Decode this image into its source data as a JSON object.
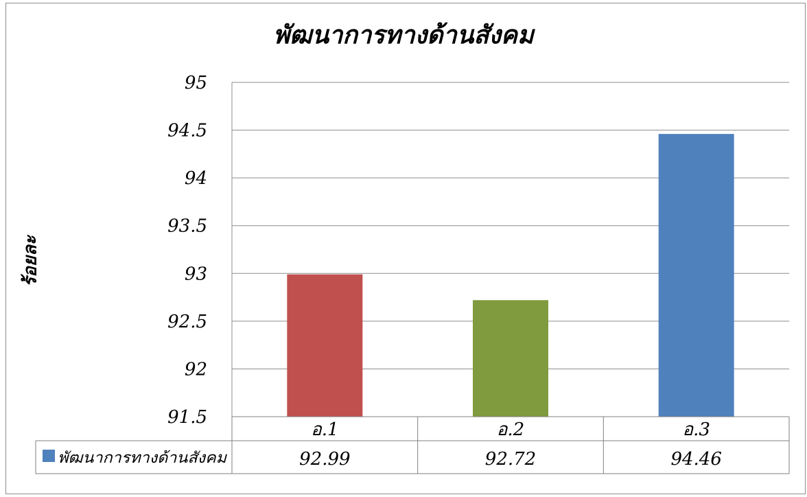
{
  "chart_data": {
    "type": "bar",
    "title": "พัฒนาการทางด้านสังคม",
    "ylabel": "ร้อยละ",
    "xlabel": "",
    "categories": [
      "อ.1",
      "อ.2",
      "อ.3"
    ],
    "series": [
      {
        "name": "พัฒนาการทางด้านสังคม",
        "values": [
          92.99,
          92.72,
          94.46
        ],
        "value_labels": [
          "92.99",
          "92.72",
          "94.46"
        ]
      }
    ],
    "bar_colors": [
      "#c0504d",
      "#7f9b3d",
      "#4f81bd"
    ],
    "legend_swatch_color": "#4f81bd",
    "ylim": [
      91.5,
      95
    ],
    "yticks": [
      "91.5",
      "92",
      "92.5",
      "93",
      "93.5",
      "94",
      "94.5",
      "95"
    ],
    "grid": true,
    "legend": "data-table-left"
  }
}
